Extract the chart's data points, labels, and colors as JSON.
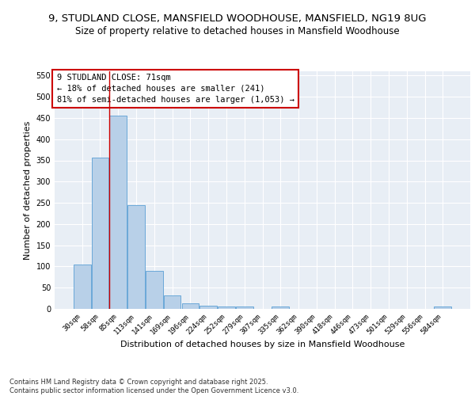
{
  "title_line1": "9, STUDLAND CLOSE, MANSFIELD WOODHOUSE, MANSFIELD, NG19 8UG",
  "title_line2": "Size of property relative to detached houses in Mansfield Woodhouse",
  "xlabel": "Distribution of detached houses by size in Mansfield Woodhouse",
  "ylabel": "Number of detached properties",
  "categories": [
    "30sqm",
    "58sqm",
    "85sqm",
    "113sqm",
    "141sqm",
    "169sqm",
    "196sqm",
    "224sqm",
    "252sqm",
    "279sqm",
    "307sqm",
    "335sqm",
    "362sqm",
    "390sqm",
    "418sqm",
    "446sqm",
    "473sqm",
    "501sqm",
    "529sqm",
    "556sqm",
    "584sqm"
  ],
  "values": [
    105,
    357,
    456,
    245,
    89,
    31,
    13,
    8,
    5,
    5,
    0,
    5,
    0,
    0,
    0,
    0,
    0,
    0,
    0,
    0,
    5
  ],
  "bar_color": "#b8d0e8",
  "bar_edge_color": "#5a9fd4",
  "red_line_x": 1.5,
  "annotation_text": "9 STUDLAND CLOSE: 71sqm\n← 18% of detached houses are smaller (241)\n81% of semi-detached houses are larger (1,053) →",
  "annotation_box_color": "#ffffff",
  "annotation_box_edge_color": "#cc0000",
  "red_line_color": "#cc0000",
  "ylim": [
    0,
    560
  ],
  "yticks": [
    0,
    50,
    100,
    150,
    200,
    250,
    300,
    350,
    400,
    450,
    500,
    550
  ],
  "background_color": "#e8eef5",
  "grid_color": "#ffffff",
  "footer": "Contains HM Land Registry data © Crown copyright and database right 2025.\nContains public sector information licensed under the Open Government Licence v3.0.",
  "title_fontsize": 9.5,
  "subtitle_fontsize": 8.5,
  "tick_fontsize": 6.5,
  "ylabel_fontsize": 8,
  "xlabel_fontsize": 8,
  "annotation_fontsize": 7.5,
  "footer_fontsize": 6
}
